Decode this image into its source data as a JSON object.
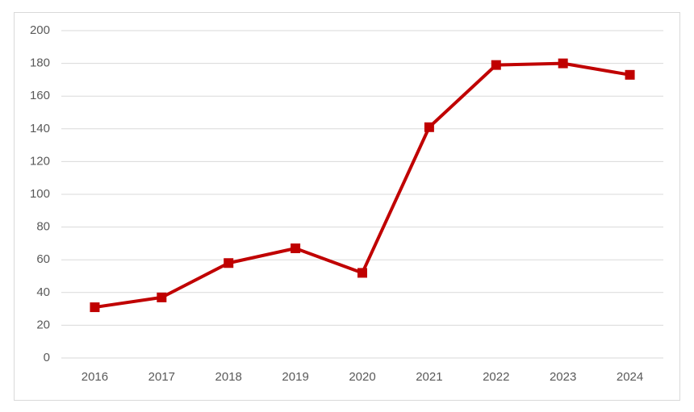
{
  "chart_data": {
    "type": "line",
    "categories": [
      "2016",
      "2017",
      "2018",
      "2019",
      "2020",
      "2021",
      "2022",
      "2023",
      "2024"
    ],
    "series": [
      {
        "color": "#c00000",
        "values": [
          31,
          37,
          58,
          67,
          52,
          141,
          179,
          180,
          173
        ]
      }
    ],
    "ylim": [
      0,
      200
    ],
    "yticks": [
      0,
      20,
      40,
      60,
      80,
      100,
      120,
      140,
      160,
      180,
      200
    ],
    "grid": true
  }
}
